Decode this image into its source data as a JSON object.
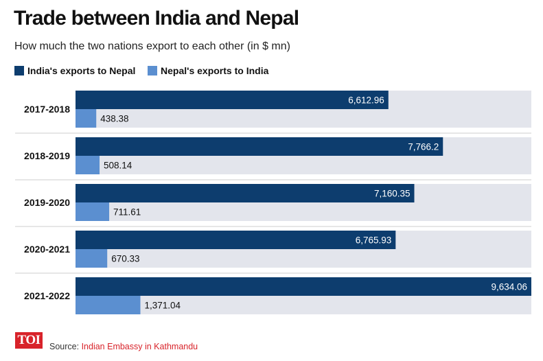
{
  "title": "Trade between India and Nepal",
  "subtitle": "How much the two nations export to each other (in $ mn)",
  "source": {
    "prefix": "Source:",
    "name": "Indian Embassy in Kathmandu"
  },
  "logo": {
    "text": "TOI",
    "color": "#d8232a"
  },
  "colors": {
    "india": "#0d3d6e",
    "nepal": "#5b8fd0",
    "track": "#e3e5ec",
    "divider": "#cccccc"
  },
  "chart_data": {
    "type": "bar",
    "orientation": "horizontal",
    "title": "Trade between India and Nepal",
    "subtitle": "How much the two nations export to each other (in $ mn)",
    "categories": [
      "2017-2018",
      "2018-2019",
      "2019-2020",
      "2020-2021",
      "2021-2022"
    ],
    "series": [
      {
        "name": "India's exports to Nepal",
        "values": [
          6612.96,
          7766.2,
          7160.35,
          6765.93,
          9634.06
        ],
        "labels": [
          "6,612.96",
          "7,766.2",
          "7,160.35",
          "6,765.93",
          "9,634.06"
        ]
      },
      {
        "name": "Nepal's exports to India",
        "values": [
          438.38,
          508.14,
          711.61,
          670.33,
          1371.04
        ],
        "labels": [
          "438.38",
          "508.14",
          "711.61",
          "670.33",
          "1,371.04"
        ]
      }
    ],
    "xlim": [
      0,
      9634.06
    ],
    "xlabel": "",
    "ylabel": "",
    "legend": "top-left",
    "grid": false
  }
}
